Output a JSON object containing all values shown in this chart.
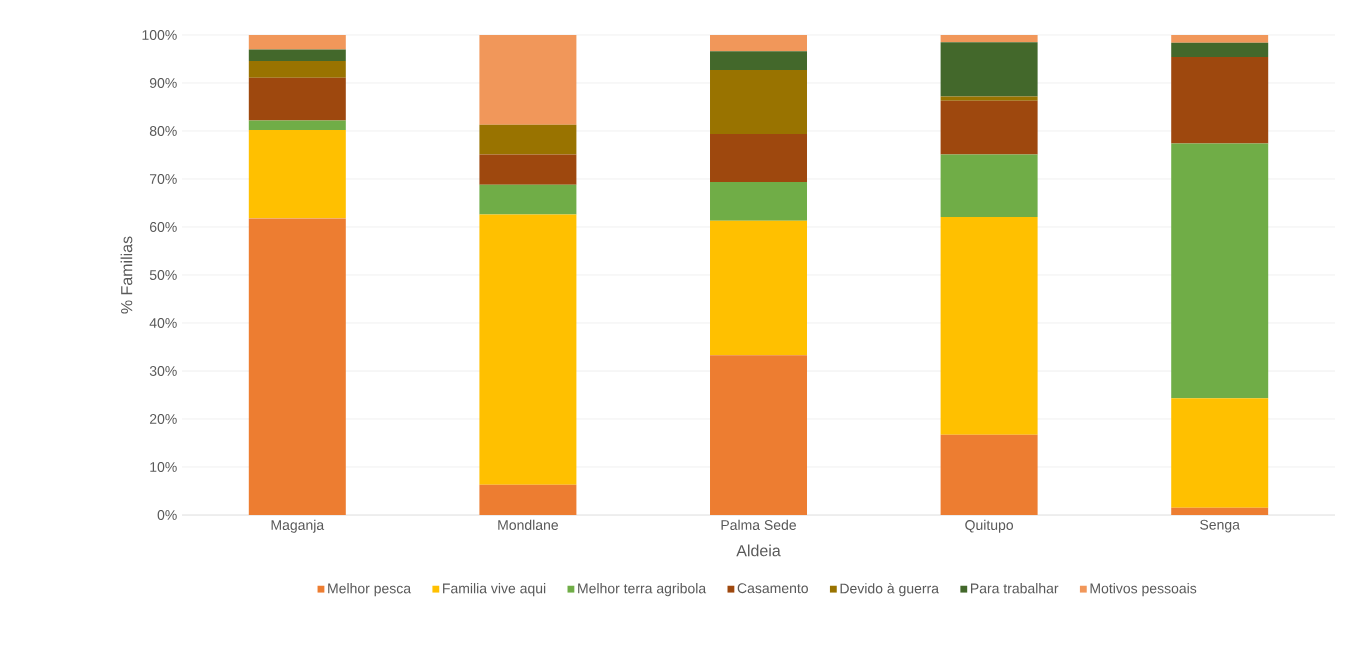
{
  "chart_data": {
    "type": "bar",
    "stacked": true,
    "xlabel": "Aldeia",
    "ylabel": "% Familias",
    "categories": [
      "Maganja",
      "Mondlane",
      "Palma Sede",
      "Quitupo",
      "Senga"
    ],
    "series": [
      {
        "name": "Melhor pesca",
        "color": "#ed7d31",
        "values": [
          61.8,
          6.3,
          33.3,
          16.7,
          1.5
        ]
      },
      {
        "name": "Familia vive aqui",
        "color": "#ffc000",
        "values": [
          18.4,
          56.3,
          28.0,
          45.4,
          22.8
        ]
      },
      {
        "name": "Melhor terra agribola",
        "color": "#70ad47",
        "values": [
          2.0,
          6.2,
          8.1,
          13.0,
          53.1
        ]
      },
      {
        "name": "Casamento",
        "color": "#9e480e",
        "values": [
          8.9,
          6.3,
          10.0,
          11.2,
          18.0
        ]
      },
      {
        "name": "Devido à guerra",
        "color": "#997300",
        "values": [
          3.5,
          6.2,
          13.3,
          0.9,
          0
        ]
      },
      {
        "name": "Para trabalhar",
        "color": "#43682b",
        "values": [
          2.4,
          0,
          3.9,
          11.3,
          3.0
        ]
      },
      {
        "name": "Motivos pessoais",
        "color": "#f1975a",
        "values": [
          3.0,
          18.7,
          3.4,
          1.5,
          1.6
        ]
      }
    ],
    "ylim": [
      0,
      100
    ],
    "yticks": [
      {
        "value": 0,
        "label": "0%"
      },
      {
        "value": 10,
        "label": "10%"
      },
      {
        "value": 20,
        "label": "20%"
      },
      {
        "value": 30,
        "label": "30%"
      },
      {
        "value": 40,
        "label": "40%"
      },
      {
        "value": 50,
        "label": "50%"
      },
      {
        "value": 60,
        "label": "60%"
      },
      {
        "value": 70,
        "label": "70%"
      },
      {
        "value": 80,
        "label": "80%"
      },
      {
        "value": 90,
        "label": "90%"
      },
      {
        "value": 100,
        "label": "100%"
      }
    ],
    "grid": "y",
    "legend": "bottom"
  }
}
